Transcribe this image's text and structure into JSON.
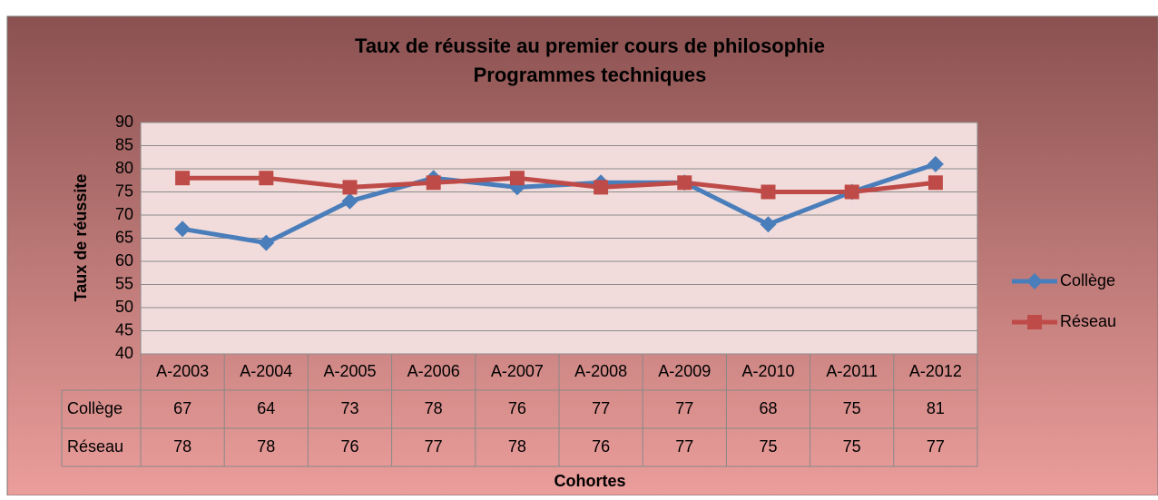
{
  "chart_data": {
    "type": "line",
    "title": "Taux de réussite au premier cours de philosophie",
    "subtitle": "Programmes techniques",
    "x_label": "Cohortes",
    "y_label": "Taux de réussite",
    "categories": [
      "A-2003",
      "A-2004",
      "A-2005",
      "A-2006",
      "A-2007",
      "A-2008",
      "A-2009",
      "A-2010",
      "A-2011",
      "A-2012"
    ],
    "series": [
      {
        "name": "Collège",
        "color": "#4a7ebb",
        "marker": "diamond",
        "values": [
          67,
          64,
          73,
          78,
          76,
          77,
          77,
          68,
          75,
          81
        ]
      },
      {
        "name": "Réseau",
        "color": "#be4b48",
        "marker": "square",
        "values": [
          78,
          78,
          76,
          77,
          78,
          76,
          77,
          75,
          75,
          77
        ]
      }
    ],
    "ylim": [
      40,
      90
    ],
    "yticks": [
      40,
      45,
      50,
      55,
      60,
      65,
      70,
      75,
      80,
      85,
      90
    ],
    "grid": true,
    "legend": "right",
    "data_table": true
  }
}
